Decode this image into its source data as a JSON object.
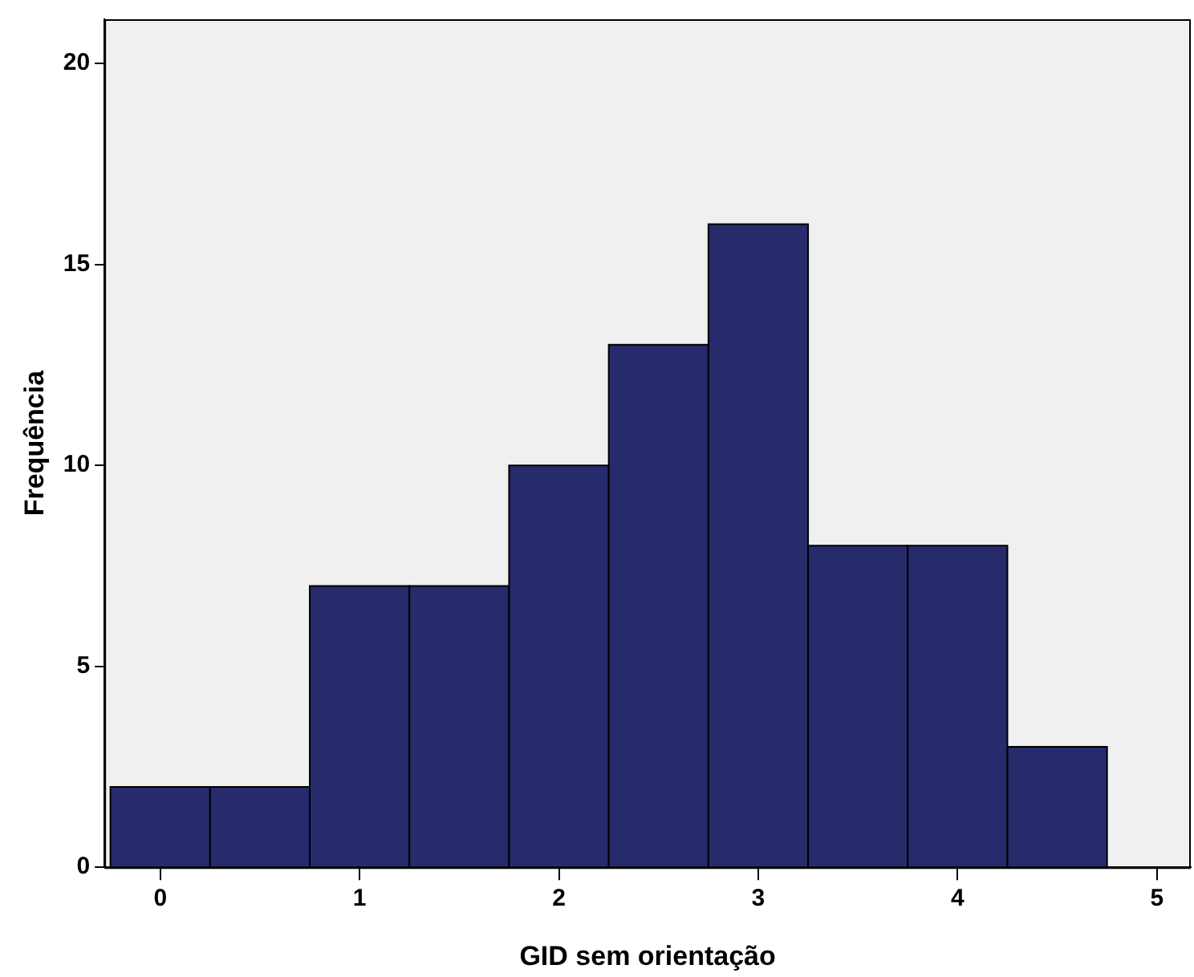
{
  "chart_data": {
    "type": "histogram",
    "xlabel": "GID sem orientação",
    "ylabel": "Frequência",
    "bins": [
      -0.25,
      0.25,
      0.75,
      1.25,
      1.75,
      2.25,
      2.75,
      3.25,
      3.75,
      4.25,
      4.75
    ],
    "values": [
      2,
      2,
      7,
      7,
      10,
      13,
      16,
      8,
      8,
      3
    ],
    "color": "#272a6b",
    "xlim": [
      -0.28,
      5.17
    ],
    "xticks": [
      0,
      1,
      2,
      3,
      4,
      5
    ],
    "ylim": [
      0,
      21.1
    ],
    "yticks": [
      0,
      5,
      10,
      15,
      20
    ],
    "grid": false
  }
}
